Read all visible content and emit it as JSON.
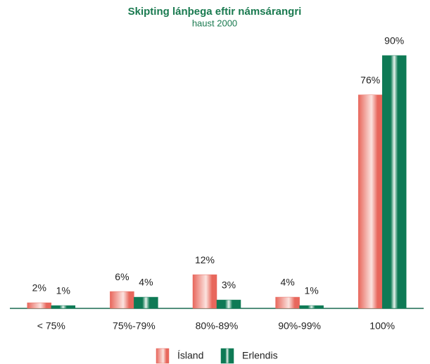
{
  "chart_data": {
    "type": "bar",
    "title": "Skipting lánþega eftir námsárangri",
    "subtitle": "haust 2000",
    "categories": [
      "< 75%",
      "75%-79%",
      "80%-89%",
      "90%-99%",
      "100%"
    ],
    "series": [
      {
        "name": "Ísland",
        "color": "#e8675c",
        "values": [
          2,
          6,
          12,
          4,
          76
        ],
        "value_labels": [
          "2%",
          "6%",
          "12%",
          "4%",
          "76%"
        ]
      },
      {
        "name": "Erlendis",
        "color": "#0e7a55",
        "values": [
          1,
          4,
          3,
          1,
          90
        ],
        "value_labels": [
          "1%",
          "4%",
          "3%",
          "1%",
          "90%"
        ]
      }
    ],
    "legend": "bottom"
  }
}
